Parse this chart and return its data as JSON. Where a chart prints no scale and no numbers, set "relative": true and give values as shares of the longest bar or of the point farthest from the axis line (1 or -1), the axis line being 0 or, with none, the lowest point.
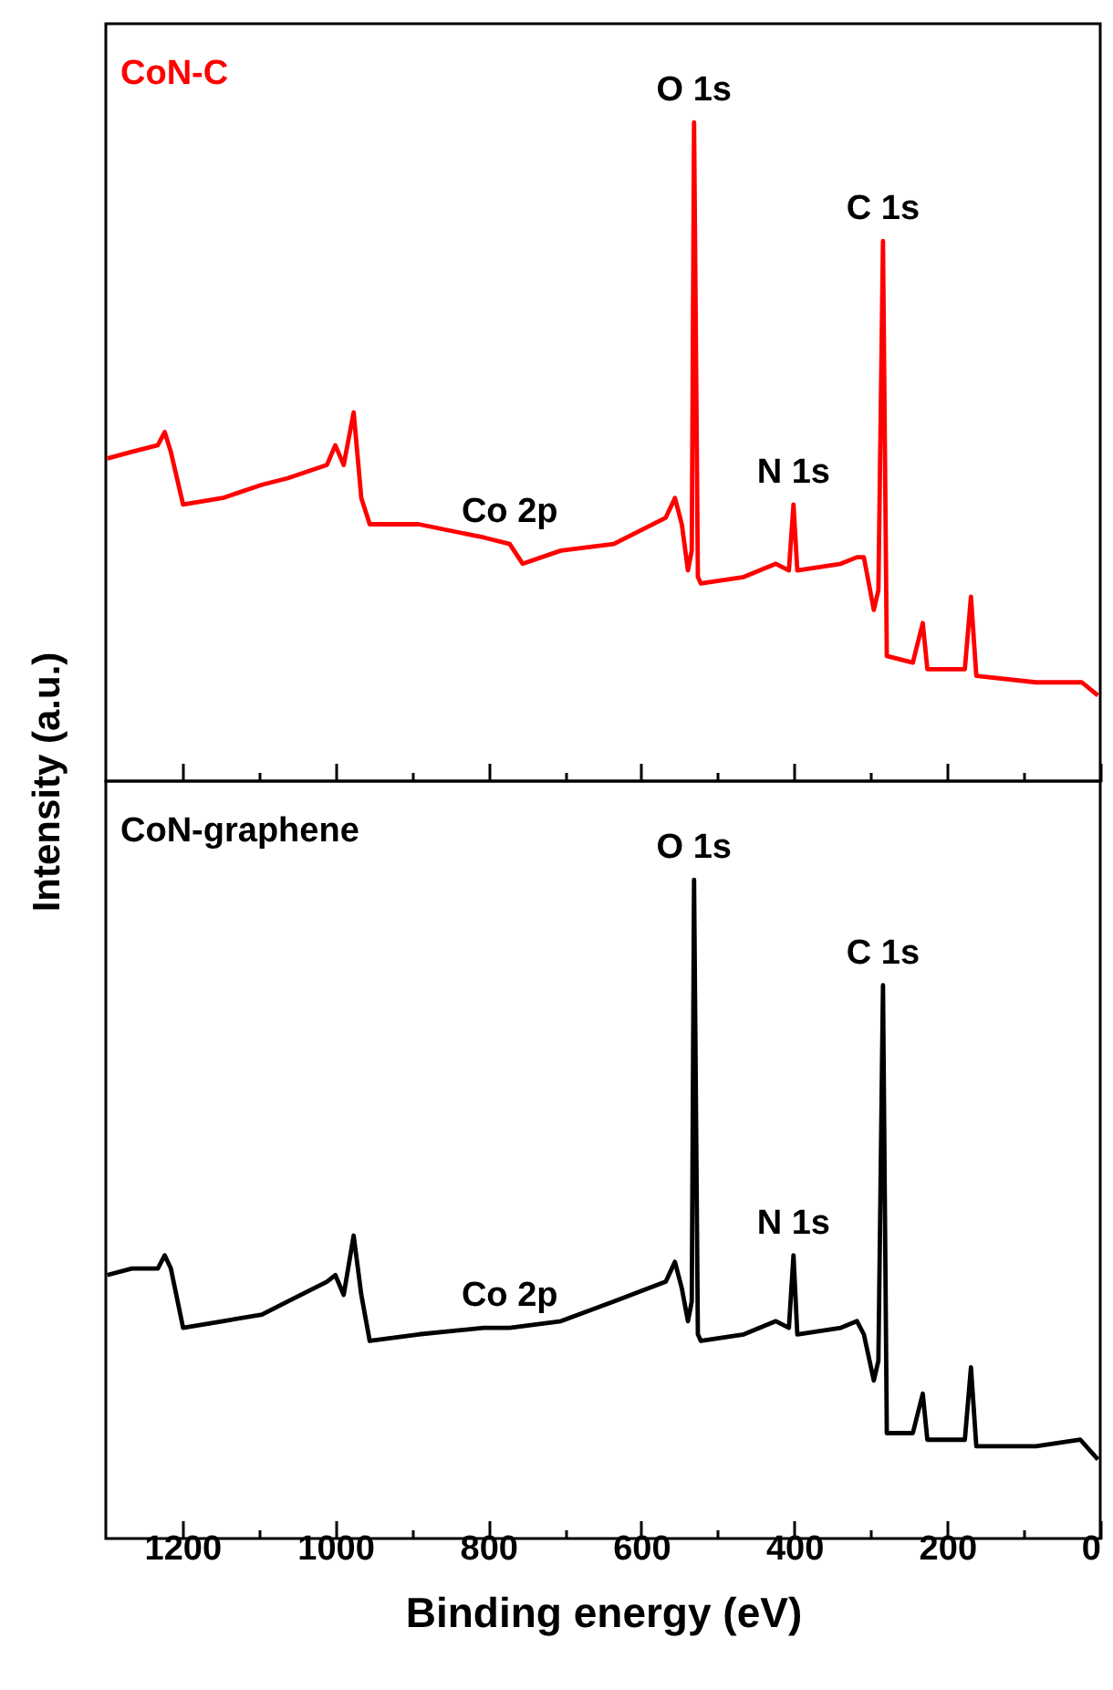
{
  "chart_data": [
    {
      "type": "line",
      "relative": true,
      "ylabel": "Intensity (a.u.)",
      "tick_labels": false,
      "xlim": [
        1300,
        0
      ],
      "xticks": [
        1200,
        {
          "value": 1100,
          "label": null
        },
        1000,
        {
          "value": 900,
          "label": null
        },
        800,
        {
          "value": 700,
          "label": null
        },
        600,
        {
          "value": 500,
          "label": null
        },
        400,
        {
          "value": 300,
          "label": null
        },
        200,
        {
          "value": 100,
          "label": null
        },
        0
      ],
      "x": [
        1298,
        1266,
        1232,
        1223,
        1215,
        1199,
        1147,
        1096,
        1062,
        1011,
        1000,
        989,
        976,
        966,
        955,
        891,
        806,
        772,
        755,
        705,
        636,
        568,
        556,
        547,
        539,
        534,
        531,
        526,
        522,
        466,
        424,
        407,
        401,
        396,
        339,
        318,
        309,
        296,
        290,
        284,
        279,
        245,
        232,
        226,
        177,
        169,
        162,
        84,
        24,
        3
      ],
      "series": [
        {
          "name": "CoN-C",
          "color": "#ff0000",
          "values": [
            0.49,
            0.5,
            0.51,
            0.53,
            0.5,
            0.42,
            0.43,
            0.45,
            0.46,
            0.48,
            0.51,
            0.48,
            0.56,
            0.43,
            0.39,
            0.39,
            0.37,
            0.36,
            0.33,
            0.35,
            0.36,
            0.4,
            0.43,
            0.39,
            0.32,
            0.35,
            1.0,
            0.31,
            0.3,
            0.31,
            0.33,
            0.32,
            0.42,
            0.32,
            0.33,
            0.34,
            0.34,
            0.26,
            0.29,
            0.82,
            0.19,
            0.18,
            0.24,
            0.17,
            0.17,
            0.28,
            0.16,
            0.15,
            0.15,
            0.13
          ]
        }
      ],
      "annotations": [
        {
          "text": "O 1s",
          "x": 531,
          "y": 1.0
        },
        {
          "text": "C 1s",
          "x": 284,
          "y": 0.82
        },
        {
          "text": "N 1s",
          "x": 401,
          "y": 0.42
        },
        {
          "text": "Co 2p",
          "x": 772,
          "y": 0.36
        }
      ]
    },
    {
      "type": "line",
      "relative": true,
      "xlabel": "Binding energy (eV)",
      "tick_labels": "x",
      "xlim": [
        1300,
        0
      ],
      "xticks": [
        1200,
        {
          "value": 1100,
          "label": null
        },
        1000,
        {
          "value": 900,
          "label": null
        },
        800,
        {
          "value": 700,
          "label": null
        },
        600,
        {
          "value": 500,
          "label": null
        },
        400,
        {
          "value": 300,
          "label": null
        },
        200,
        {
          "value": 100,
          "label": null
        },
        0
      ],
      "x": [
        1298,
        1266,
        1232,
        1223,
        1215,
        1199,
        1147,
        1096,
        1062,
        1011,
        1000,
        989,
        976,
        966,
        955,
        891,
        806,
        772,
        705,
        636,
        568,
        556,
        547,
        539,
        534,
        531,
        526,
        522,
        466,
        424,
        407,
        401,
        396,
        339,
        318,
        309,
        296,
        290,
        284,
        279,
        245,
        232,
        226,
        177,
        169,
        162,
        84,
        26,
        3
      ],
      "series": [
        {
          "name": "CoN-graphene",
          "color": "#000000",
          "values": [
            0.4,
            0.41,
            0.41,
            0.43,
            0.41,
            0.32,
            0.33,
            0.34,
            0.36,
            0.39,
            0.4,
            0.37,
            0.46,
            0.37,
            0.3,
            0.31,
            0.32,
            0.32,
            0.33,
            0.36,
            0.39,
            0.42,
            0.38,
            0.33,
            0.36,
            1.0,
            0.31,
            0.3,
            0.31,
            0.33,
            0.32,
            0.43,
            0.31,
            0.32,
            0.33,
            0.31,
            0.24,
            0.27,
            0.84,
            0.16,
            0.16,
            0.22,
            0.15,
            0.15,
            0.26,
            0.14,
            0.14,
            0.15,
            0.12
          ]
        }
      ],
      "annotations": [
        {
          "text": "O 1s",
          "x": 531,
          "y": 1.0
        },
        {
          "text": "C 1s",
          "x": 284,
          "y": 0.84
        },
        {
          "text": "N 1s",
          "x": 401,
          "y": 0.43
        },
        {
          "text": "Co 2p",
          "x": 772,
          "y": 0.32
        }
      ]
    }
  ]
}
